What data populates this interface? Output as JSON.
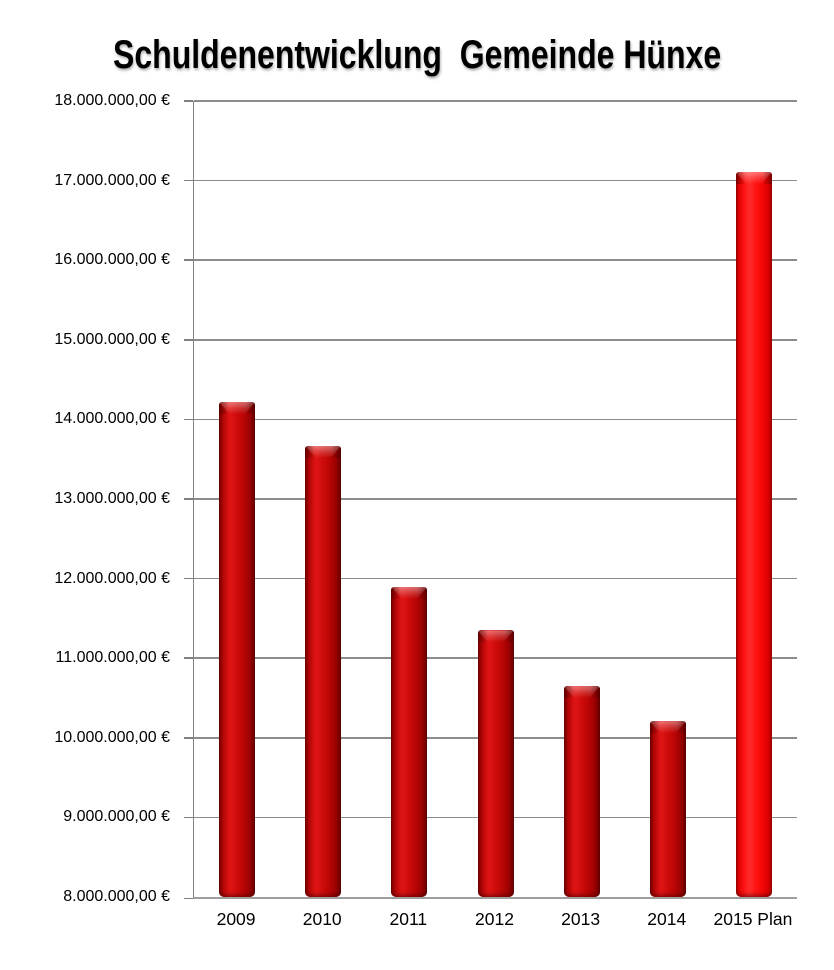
{
  "title": "Schuldenentwicklung  Gemeinde Hünxe",
  "chart_data": {
    "type": "bar",
    "title": "Schuldenentwicklung  Gemeinde Hünxe",
    "xlabel": "",
    "ylabel": "",
    "categories": [
      "2009",
      "2010",
      "2011",
      "2012",
      "2013",
      "2014",
      "2015 Plan"
    ],
    "values": [
      14220000,
      13670000,
      11900000,
      11350000,
      10650000,
      10210000,
      17110000
    ],
    "ylim": [
      8000000,
      18000000
    ],
    "ytick_step": 1000000,
    "ytick_labels": [
      "8.000.000,00 €",
      "9.000.000,00 €",
      "10.000.000,00 €",
      "11.000.000,00 €",
      "12.000.000,00 €",
      "13.000.000,00 €",
      "14.000.000,00 €",
      "15.000.000,00 €",
      "16.000.000,00 €",
      "17.000.000,00 €",
      "18.000.000,00 €"
    ],
    "grid": true,
    "legend": false,
    "highlight_index": 6,
    "bar_color_default": "#C00000",
    "bar_color_highlight": "#FF0000",
    "gridline_color": "#8C8C8C",
    "axis_color": "#808080",
    "background_color": "#FFFFFF"
  }
}
